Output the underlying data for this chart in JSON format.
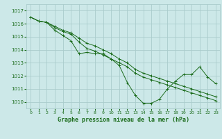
{
  "xlabel": "Graphe pression niveau de la mer (hPa)",
  "bg_color": "#cce8e8",
  "grid_color": "#aacccc",
  "line_color": "#1a6b1a",
  "ylim": [
    1009.5,
    1017.5
  ],
  "xlim": [
    -0.5,
    23.5
  ],
  "yticks": [
    1010,
    1011,
    1012,
    1013,
    1014,
    1015,
    1016,
    1017
  ],
  "xticks": [
    0,
    1,
    2,
    3,
    4,
    5,
    6,
    7,
    8,
    9,
    10,
    11,
    12,
    13,
    14,
    15,
    16,
    17,
    18,
    19,
    20,
    21,
    22,
    23
  ],
  "series": [
    [
      1016.5,
      1016.2,
      1016.1,
      1015.5,
      1015.1,
      1014.7,
      1013.7,
      1013.8,
      1013.7,
      1013.7,
      1013.3,
      1012.8,
      1011.5,
      1010.5,
      1009.9,
      1009.9,
      1010.2,
      1011.0,
      1011.6,
      1012.1,
      1012.1,
      1012.7,
      1011.9,
      1011.4
    ],
    [
      1016.5,
      1016.2,
      1016.1,
      1015.7,
      1015.4,
      1015.2,
      1014.6,
      1014.1,
      1013.9,
      1013.6,
      1013.3,
      1013.0,
      1012.7,
      1012.2,
      1011.9,
      1011.7,
      1011.5,
      1011.3,
      1011.1,
      1010.9,
      1010.7,
      1010.5,
      1010.3,
      1010.1
    ],
    [
      1016.5,
      1016.2,
      1016.1,
      1015.8,
      1015.5,
      1015.3,
      1014.9,
      1014.5,
      1014.3,
      1014.0,
      1013.7,
      1013.3,
      1013.0,
      1012.5,
      1012.2,
      1012.0,
      1011.8,
      1011.6,
      1011.4,
      1011.2,
      1011.0,
      1010.8,
      1010.6,
      1010.4
    ]
  ]
}
